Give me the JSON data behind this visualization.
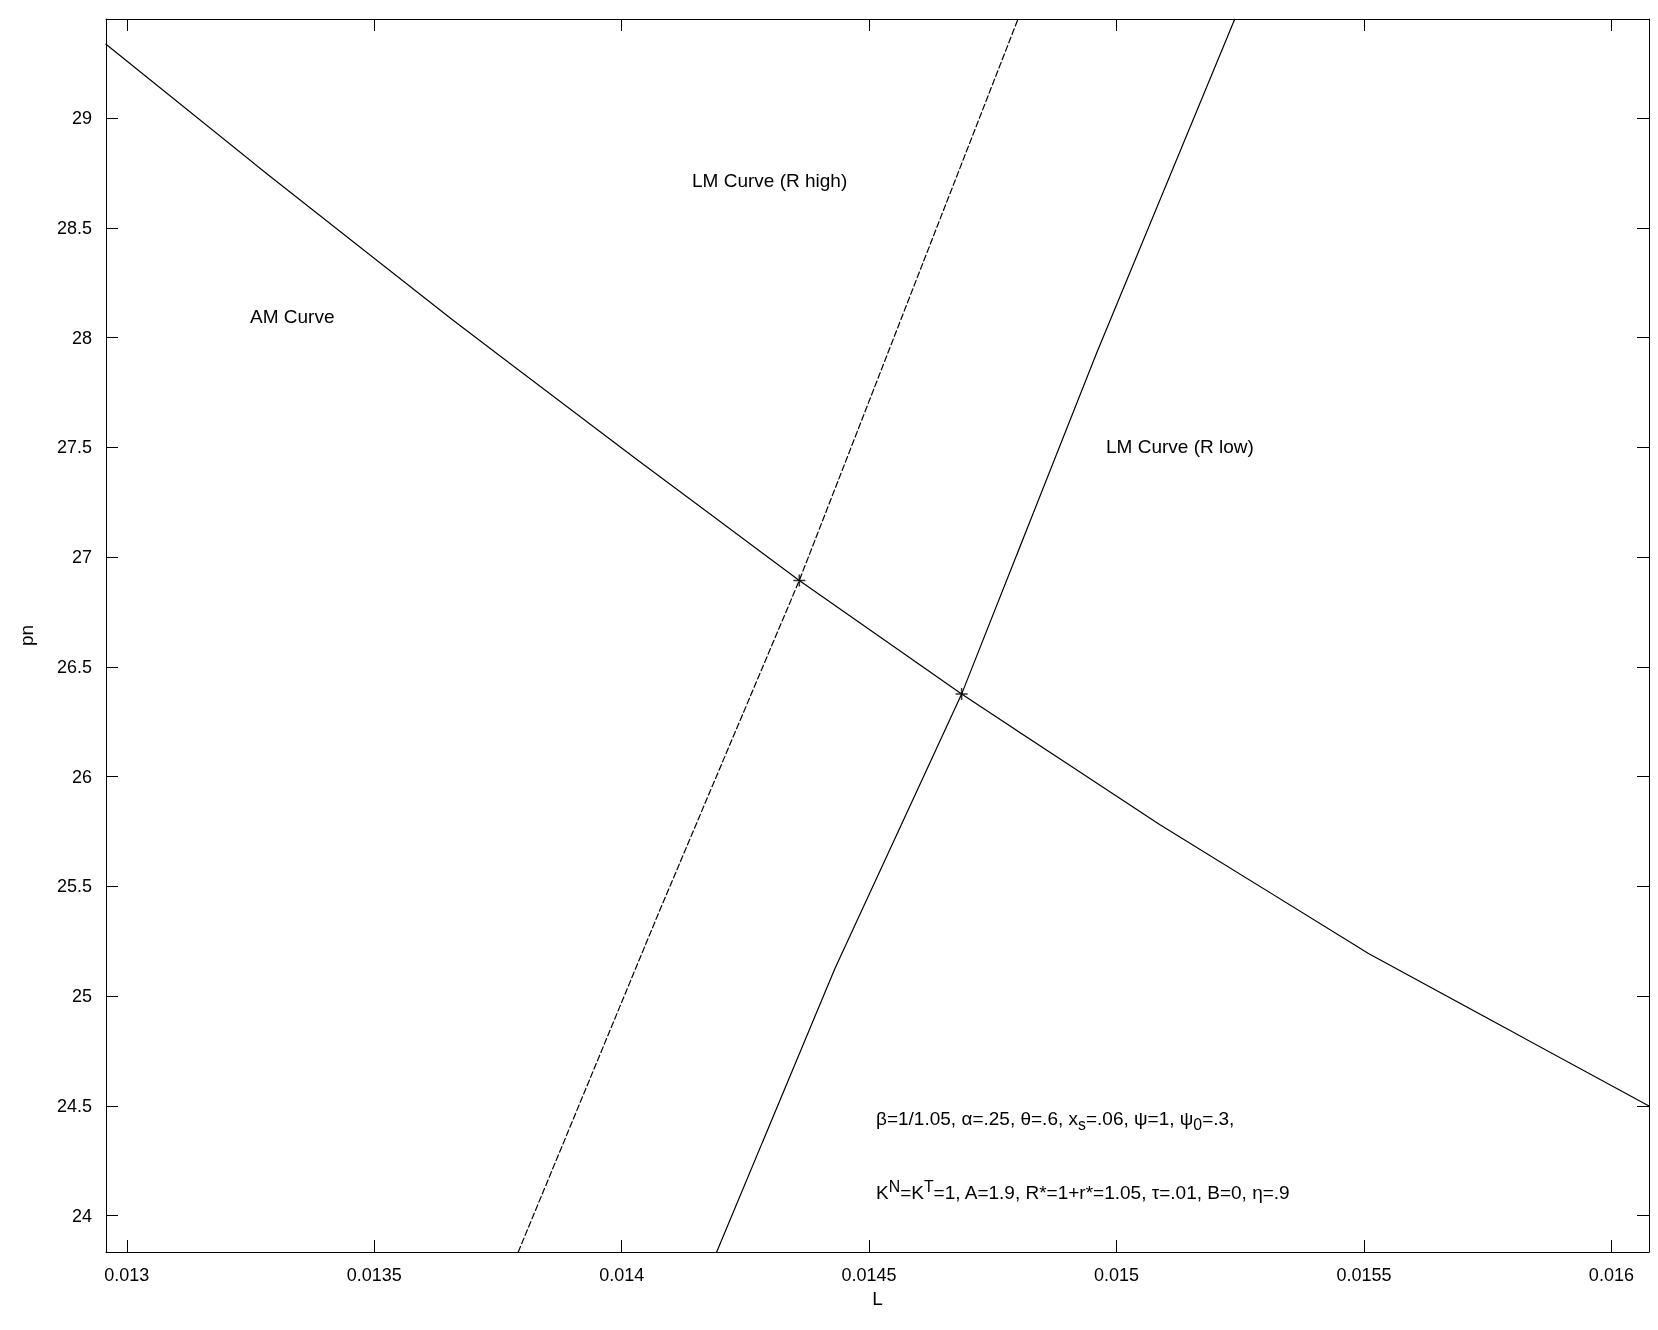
{
  "chart_data": {
    "type": "line",
    "xlabel": "L",
    "ylabel": "pn",
    "xlim": [
      0.012958,
      0.016076
    ],
    "ylim": [
      23.834,
      29.452
    ],
    "xticks": [
      0.013,
      0.0135,
      0.014,
      0.0145,
      0.015,
      0.0155,
      0.016
    ],
    "yticks": [
      24,
      24.5,
      25,
      25.5,
      26,
      26.5,
      27,
      27.5,
      28,
      28.5,
      29
    ],
    "grid": false,
    "marker": "none",
    "series": [
      {
        "color": "#000000",
        "line_style": "solid",
        "x": [
          0.012958,
          0.01329,
          0.01366,
          0.01403,
          0.014359,
          0.014687,
          0.015087,
          0.01551,
          0.016076
        ],
        "values": [
          29.337,
          28.734,
          28.078,
          27.446,
          26.894,
          26.376,
          25.782,
          25.193,
          24.499
        ]
      },
      {
        "type": "line",
        "color": "#000000",
        "line_style": "dashed",
        "x": [
          0.013791,
          0.014072,
          0.014359,
          0.014579,
          0.014801
        ],
        "values": [
          23.834,
          25.364,
          26.894,
          28.168,
          29.452
        ]
      },
      {
        "type": "line",
        "color": "#000000",
        "line_style": "solid",
        "x": [
          0.014192,
          0.014431,
          0.014687,
          0.01496,
          0.015239
        ],
        "values": [
          23.834,
          25.126,
          26.376,
          27.931,
          29.452
        ]
      },
      {
        "type": "scatter",
        "color": "#000000",
        "marker": "cross",
        "x": [
          0.014359,
          0.014687
        ],
        "values": [
          26.894,
          26.376
        ]
      }
    ],
    "annotations": [
      "AM Curve",
      "LM Curve (R high)",
      "LM Curve (R low)",
      "β=1/1.05, α=.25, θ=.6, x$_{s}$=.06, ψ=1, ψ$_{0}$=.3,",
      "K$^{N}$=K$^{T}$=1, A=1.9, R*=1+r*=1.05, τ=.01, B=0, η=.9"
    ]
  }
}
